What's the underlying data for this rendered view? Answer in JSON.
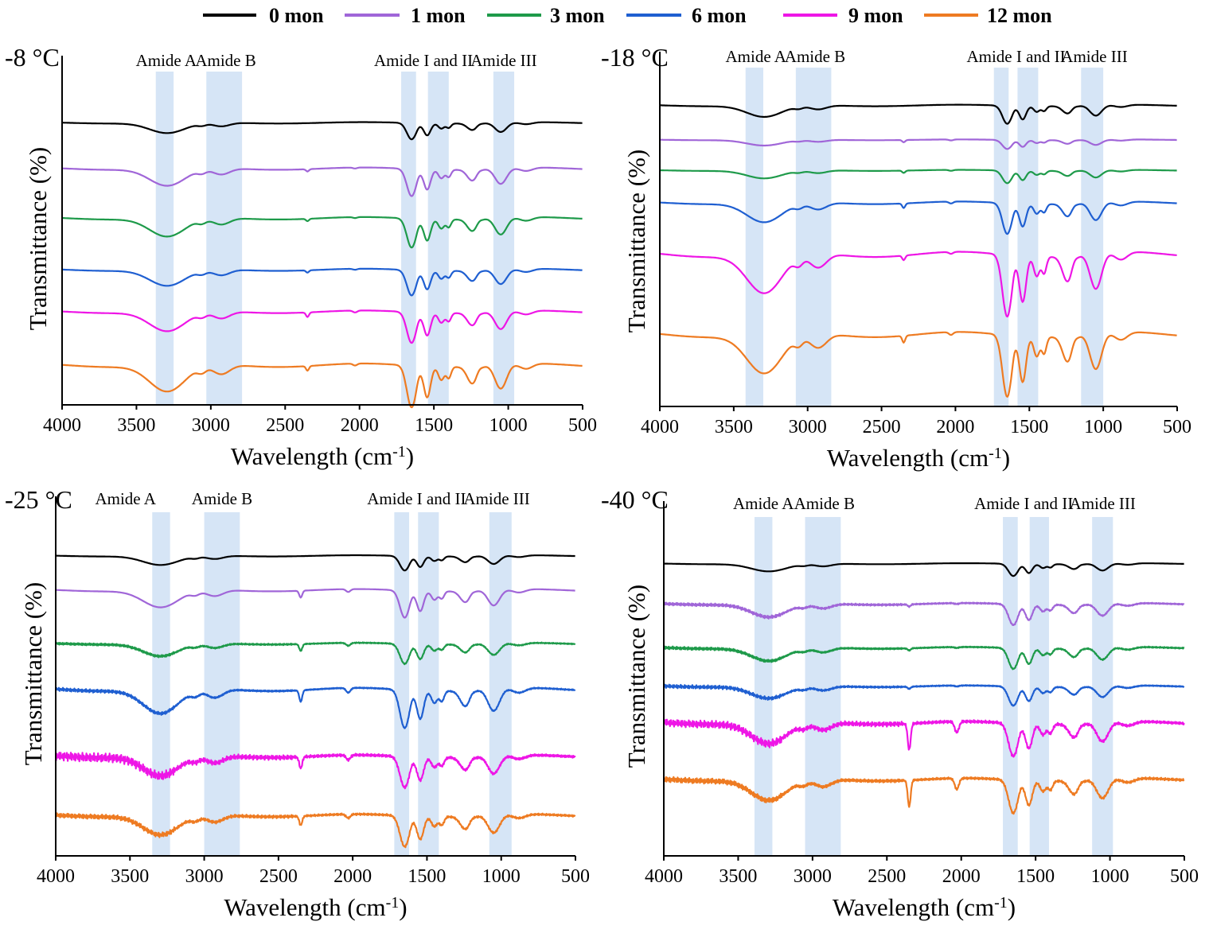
{
  "legend": [
    {
      "name": "0 mon",
      "color": "#000000"
    },
    {
      "name": "1 mon",
      "color": "#a066d8"
    },
    {
      "name": "3 mon",
      "color": "#1e9a4a"
    },
    {
      "name": "6 mon",
      "color": "#1f5fd1"
    },
    {
      "name": "9 mon",
      "color": "#ee16e6"
    },
    {
      "name": "12 mon",
      "color": "#ee7b22"
    }
  ],
  "chart_data": [
    {
      "type": "line",
      "title": "-8 °C",
      "xlabel": "Wavelength (cm-1)",
      "xlabel_main": "Wavelength (cm",
      "xlabel_sup": "-1",
      "xlabel_close": ")",
      "ylabel": "Transmittance  (%)",
      "xlim": [
        4000,
        500
      ],
      "xticks": [
        "4000",
        "3500",
        "3000",
        "2500",
        "2000",
        "1500",
        "1000",
        "500"
      ],
      "bands": [
        {
          "label": "Amide A",
          "x0": 3370,
          "x1": 3250
        },
        {
          "label": "Amide B",
          "x0": 3030,
          "x1": 2790
        },
        {
          "label": "Amide I and II",
          "x0": 1720,
          "x1": 1620
        },
        {
          "label": "Amide I and II",
          "x0": 1540,
          "x1": 1400
        },
        {
          "label": "Amide III",
          "x0": 1100,
          "x1": 960
        }
      ],
      "band_labels": [
        {
          "text": "Amide A",
          "x": 3300
        },
        {
          "text": "Amide B",
          "x": 2900
        },
        {
          "text": "Amide I and II",
          "x": 1570
        },
        {
          "text": "Amide III",
          "x": 1030
        }
      ],
      "series": [
        {
          "name": "0 mon",
          "offset": 0.55,
          "scale": 0.45,
          "noise": 0.0,
          "peak2350": 0.0
        },
        {
          "name": "1 mon",
          "offset": 1.75,
          "scale": 0.75,
          "noise": 0.0,
          "peak2350": 0.1
        },
        {
          "name": "3 mon",
          "offset": 3.05,
          "scale": 0.8,
          "noise": 0.0,
          "peak2350": 0.1
        },
        {
          "name": "6 mon",
          "offset": 4.4,
          "scale": 0.7,
          "noise": 0.0,
          "peak2350": 0.1
        },
        {
          "name": "9 mon",
          "offset": 5.5,
          "scale": 0.85,
          "noise": 0.0,
          "peak2350": 0.2
        },
        {
          "name": "12 mon",
          "offset": 6.9,
          "scale": 1.15,
          "noise": 0.0,
          "peak2350": 0.2
        }
      ]
    },
    {
      "type": "line",
      "title": "-18 °C",
      "xlabel": "Wavelength (cm-1)",
      "xlabel_main": "Wavelength (cm",
      "xlabel_sup": "-1",
      "xlabel_close": ")",
      "ylabel": "Transmittance  (%)",
      "xlim": [
        4000,
        500
      ],
      "xticks": [
        "4000",
        "3500",
        "3000",
        "2500",
        "2000",
        "1500",
        "1000",
        "500"
      ],
      "bands": [
        {
          "label": "Amide A",
          "x0": 3420,
          "x1": 3300
        },
        {
          "label": "Amide B",
          "x0": 3080,
          "x1": 2840
        },
        {
          "label": "Amide I and II",
          "x0": 1740,
          "x1": 1640
        },
        {
          "label": "Amide I and II",
          "x0": 1580,
          "x1": 1440
        },
        {
          "label": "Amide III",
          "x0": 1150,
          "x1": 1000
        }
      ],
      "band_labels": [
        {
          "text": "Amide A",
          "x": 3350
        },
        {
          "text": "Amide B",
          "x": 2950
        },
        {
          "text": "Amide I and II",
          "x": 1590
        },
        {
          "text": "Amide III",
          "x": 1060
        }
      ],
      "series": [
        {
          "name": "0 mon",
          "offset": 0.2,
          "scale": 0.5,
          "noise": 0.0,
          "peak2350": 0.0
        },
        {
          "name": "1 mon",
          "offset": 1.1,
          "scale": 0.25,
          "noise": 0.0,
          "peak2350": 0.1
        },
        {
          "name": "3 mon",
          "offset": 1.9,
          "scale": 0.35,
          "noise": 0.0,
          "peak2350": 0.1
        },
        {
          "name": "6 mon",
          "offset": 2.75,
          "scale": 0.85,
          "noise": 0.0,
          "peak2350": 0.2
        },
        {
          "name": "9 mon",
          "offset": 4.1,
          "scale": 1.7,
          "noise": 0.0,
          "peak2350": 0.2
        },
        {
          "name": "12 mon",
          "offset": 6.2,
          "scale": 1.7,
          "noise": 0.0,
          "peak2350": 0.3
        }
      ]
    },
    {
      "type": "line",
      "title": "-25 °C",
      "xlabel": "Wavelength (cm-1)",
      "xlabel_main": "Wavelength (cm",
      "xlabel_sup": "-1",
      "xlabel_close": ")",
      "ylabel": "Transmittance  (%)",
      "xlim": [
        4000,
        500
      ],
      "xticks": [
        "4000",
        "3500",
        "3000",
        "2500",
        "2000",
        "1500",
        "1000",
        "500"
      ],
      "bands": [
        {
          "label": "Amide A",
          "x0": 3350,
          "x1": 3230
        },
        {
          "label": "Amide B",
          "x0": 3000,
          "x1": 2760
        },
        {
          "label": "Amide I and II",
          "x0": 1720,
          "x1": 1620
        },
        {
          "label": "Amide I and II",
          "x0": 1560,
          "x1": 1420
        },
        {
          "label": "Amide III",
          "x0": 1080,
          "x1": 930
        }
      ],
      "band_labels": [
        {
          "text": "Amide A",
          "x": 3530
        },
        {
          "text": "Amide B",
          "x": 2880
        },
        {
          "text": "Amide I and II",
          "x": 1570
        },
        {
          "text": "Amide III",
          "x": 1030
        }
      ],
      "series": [
        {
          "name": "0 mon",
          "offset": 0.35,
          "scale": 0.4,
          "noise": 0.0,
          "peak2350": 0.0
        },
        {
          "name": "1 mon",
          "offset": 1.25,
          "scale": 0.75,
          "noise": 0.0,
          "peak2350": 0.3
        },
        {
          "name": "3 mon",
          "offset": 2.65,
          "scale": 0.55,
          "noise": 0.04,
          "peak2350": 0.3
        },
        {
          "name": "6 mon",
          "offset": 3.85,
          "scale": 1.05,
          "noise": 0.05,
          "peak2350": 0.5
        },
        {
          "name": "9 mon",
          "offset": 5.6,
          "scale": 0.85,
          "noise": 0.12,
          "peak2350": 0.5
        },
        {
          "name": "12 mon",
          "offset": 7.15,
          "scale": 0.85,
          "noise": 0.08,
          "peak2350": 0.4
        }
      ]
    },
    {
      "type": "line",
      "title": "-40 °C",
      "xlabel": "Wavelength (cm-1)",
      "xlabel_main": "Wavelength (cm",
      "xlabel_sup": "-1",
      "xlabel_close": ")",
      "ylabel": "Transmittance  (%)",
      "xlim": [
        4000,
        500
      ],
      "xticks": [
        "4000",
        "3500",
        "3000",
        "2500",
        "2000",
        "1500",
        "1000",
        "500"
      ],
      "bands": [
        {
          "label": "Amide A",
          "x0": 3390,
          "x1": 3270
        },
        {
          "label": "Amide B",
          "x0": 3050,
          "x1": 2810
        },
        {
          "label": "Amide I and II",
          "x0": 1720,
          "x1": 1620
        },
        {
          "label": "Amide I and II",
          "x0": 1540,
          "x1": 1410
        },
        {
          "label": "Amide III",
          "x0": 1120,
          "x1": 980
        }
      ],
      "band_labels": [
        {
          "text": "Amide A",
          "x": 3330
        },
        {
          "text": "Amide B",
          "x": 2920
        },
        {
          "text": "Amide I and II",
          "x": 1580
        },
        {
          "text": "Amide III",
          "x": 1050
        }
      ],
      "series": [
        {
          "name": "0 mon",
          "offset": 0.45,
          "scale": 0.35,
          "noise": 0.0,
          "peak2350": 0.0
        },
        {
          "name": "1 mon",
          "offset": 1.55,
          "scale": 0.6,
          "noise": 0.05,
          "peak2350": 0.1
        },
        {
          "name": "3 mon",
          "offset": 2.75,
          "scale": 0.6,
          "noise": 0.05,
          "peak2350": 0.1
        },
        {
          "name": "6 mon",
          "offset": 3.8,
          "scale": 0.55,
          "noise": 0.05,
          "peak2350": 0.1
        },
        {
          "name": "9 mon",
          "offset": 4.8,
          "scale": 0.95,
          "noise": 0.12,
          "peak2350": 1.2
        },
        {
          "name": "12 mon",
          "offset": 6.35,
          "scale": 0.95,
          "noise": 0.1,
          "peak2350": 1.2
        }
      ]
    }
  ]
}
